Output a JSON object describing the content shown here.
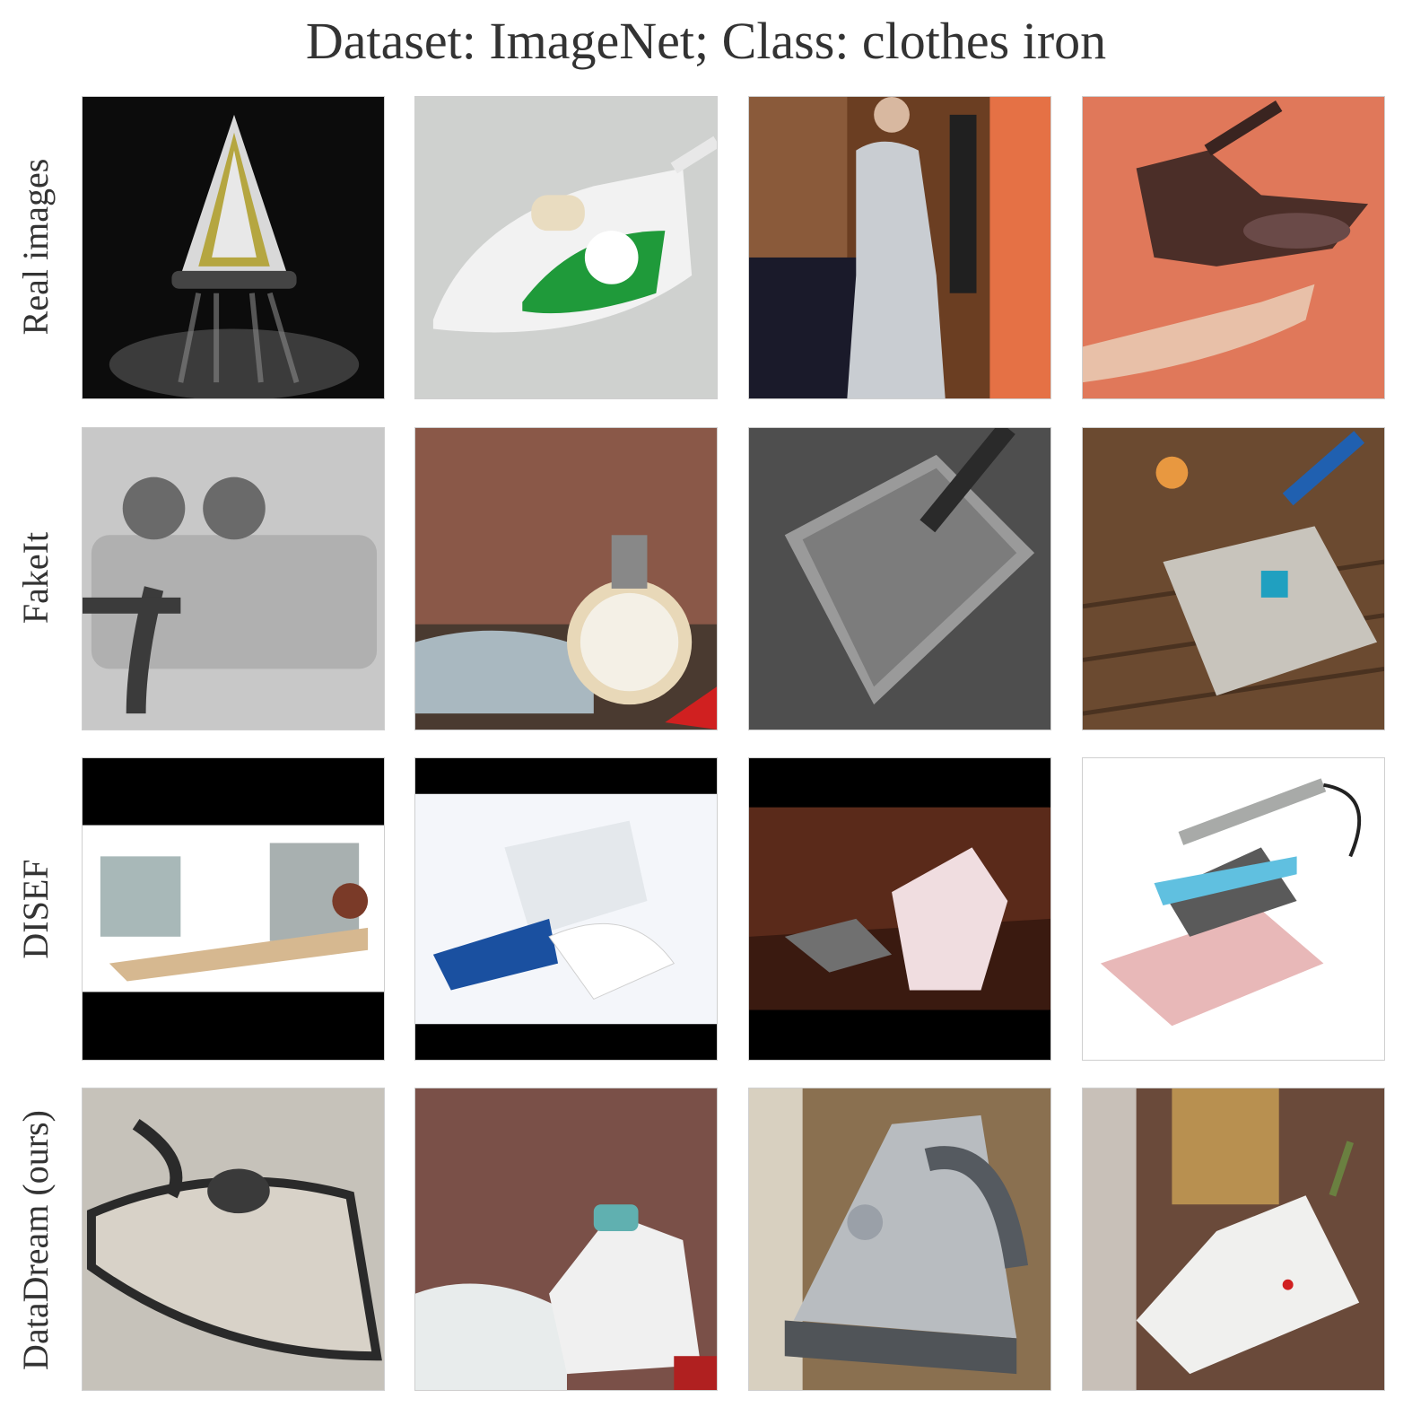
{
  "title": "Dataset: ImageNet; Class: clothes iron",
  "rows": [
    {
      "label": "Real images",
      "images": [
        "iron with steam on black background",
        "white and green steam iron",
        "woman in apron ironing",
        "hand holding vintage iron on orange background"
      ]
    },
    {
      "label": "FakeIt",
      "images": [
        "grey metal machine",
        "vintage scale on brick wall",
        "metal tray with handle",
        "metal machine on wooden floor"
      ]
    },
    {
      "label": "DISEF",
      "images": [
        "industrial machine with black bars",
        "white and blue iron with black bars",
        "shirt on wooden table with black bars",
        "cartoon iron on pink block"
      ]
    },
    {
      "label": "DataDream (ours)",
      "images": [
        "drawn iron sketch",
        "white iron with teal handle",
        "silver steam iron",
        "white iron in room"
      ]
    }
  ],
  "icons": [
    "photo-thumbnail"
  ]
}
